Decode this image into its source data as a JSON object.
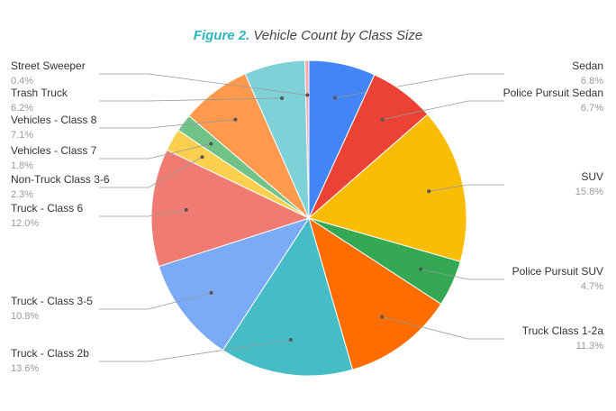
{
  "chart_data": {
    "type": "pie",
    "figure_label": "Figure 2.",
    "title": "Vehicle Count by Class Size",
    "categories": [
      "Sedan",
      "Police Pursuit Sedan",
      "SUV",
      "Police Pursuit SUV",
      "Truck Class 1-2a",
      "Truck - Class 2b",
      "Truck - Class 3-5",
      "Truck - Class 6",
      "Non-Truck Class 3-6",
      "Vehicles - Class 7",
      "Vehicles - Class 8",
      "Trash Truck",
      "Street Sweeper"
    ],
    "values": [
      6.8,
      6.7,
      15.8,
      4.7,
      11.3,
      13.6,
      10.8,
      12.0,
      2.3,
      1.8,
      7.1,
      6.2,
      0.4
    ],
    "value_labels": [
      "6.8%",
      "6.7%",
      "15.8%",
      "4.7%",
      "11.3%",
      "13.6%",
      "10.8%",
      "12.0%",
      "2.3%",
      "1.8%",
      "7.1%",
      "6.2%",
      "0.4%"
    ],
    "colors": [
      "#4285f4",
      "#ea4335",
      "#fbbc04",
      "#34a853",
      "#ff6d01",
      "#46bdc6",
      "#7baaf7",
      "#f07b72",
      "#fcd04f",
      "#71c287",
      "#ff994d",
      "#7ed1d7",
      "#f4a8b0"
    ]
  }
}
